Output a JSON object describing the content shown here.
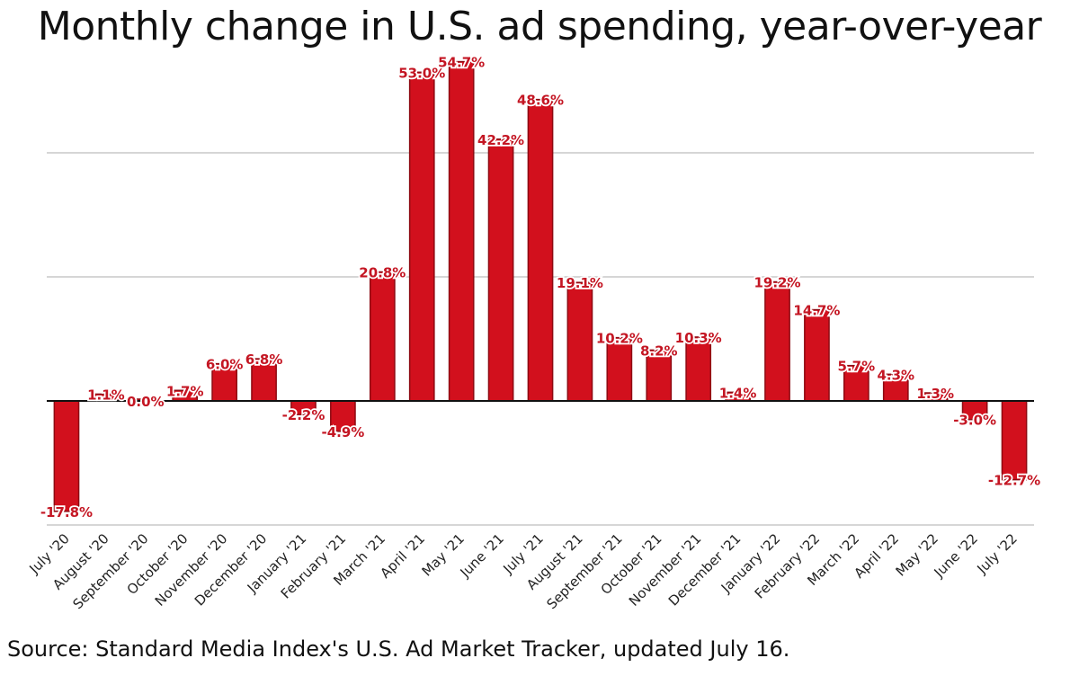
{
  "chart_data": {
    "type": "bar",
    "title": "Monthly change in U.S. ad spending, year-over-year",
    "categories": [
      "July '20",
      "August '20",
      "September '20",
      "October '20",
      "November '20",
      "December '20",
      "January '21",
      "February '21",
      "March '21",
      "April '21",
      "May '21",
      "June '21",
      "July '21",
      "August '21",
      "September '21",
      "October '21",
      "November '21",
      "December '21",
      "January '22",
      "February '22",
      "March '22",
      "April '22",
      "May '22",
      "June '22",
      "July '22"
    ],
    "values": [
      -17.8,
      1.1,
      0.0,
      1.7,
      6.0,
      6.8,
      -2.2,
      -4.9,
      20.8,
      53.0,
      54.7,
      42.2,
      48.6,
      19.1,
      10.2,
      8.2,
      10.3,
      1.4,
      19.2,
      14.7,
      5.7,
      4.3,
      1.3,
      -3.0,
      -12.7
    ],
    "data_labels": [
      "-17.8%",
      "1.1%",
      "0.0%",
      "1.7%",
      "6.0%",
      "6.8%",
      "-2.2%",
      "-4.9%",
      "20.8%",
      "53.0%",
      "54.7%",
      "42.2%",
      "48.6%",
      "19.1%",
      "10.2%",
      "8.2%",
      "10.3%",
      "1.4%",
      "19.2%",
      "14.7%",
      "5.7%",
      "4.3%",
      "1.3%",
      "-3.0%",
      "-12.7%"
    ],
    "ylim": [
      -20,
      60
    ],
    "grid": true,
    "bar_color": "#d2101d"
  },
  "source": "Source: Standard Media Index's U.S. Ad Market Tracker, updated July 16."
}
